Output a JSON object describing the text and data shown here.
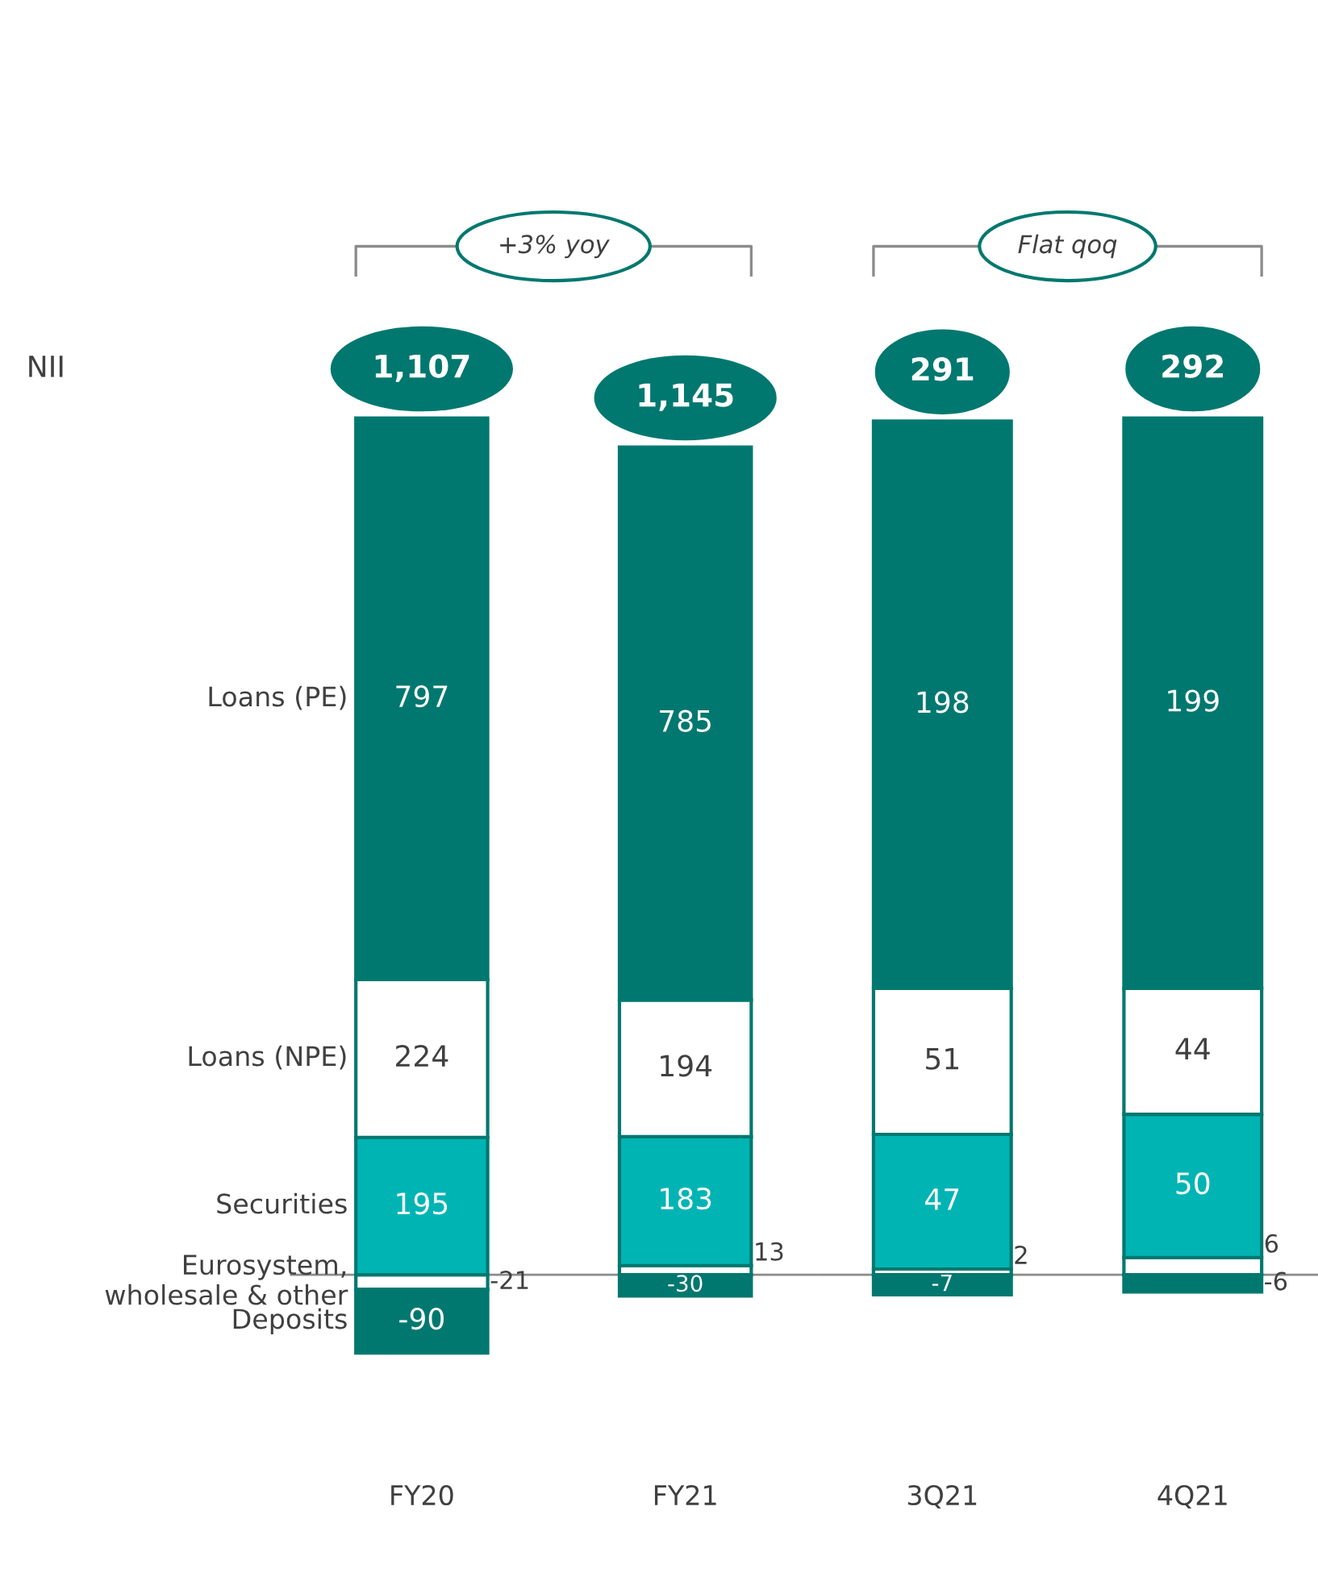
{
  "chart_data": [
    {
      "type": "bar",
      "stacked": true,
      "ylabel": "NII",
      "categories": [
        "FY20",
        "FY21"
      ],
      "tick_labels": "x",
      "data_labels": true,
      "legend": false,
      "grid": false,
      "series": [
        {
          "name": "Eurosystem,\nwholesale & other",
          "color": "#ffffff",
          "values": [
            -21,
            13
          ]
        },
        {
          "name": "Securities",
          "color": "#00b4b4",
          "values": [
            195,
            183
          ]
        },
        {
          "name": "Loans (NPE)",
          "color": "#ffffff",
          "values": [
            224,
            194
          ]
        },
        {
          "name": "Loans (PE)",
          "color": "#00786f",
          "values": [
            797,
            785
          ]
        },
        {
          "name": "Deposits",
          "color": "#00786f",
          "values": [
            -90,
            -30
          ]
        }
      ],
      "totals": [
        "1,107",
        "1,145"
      ],
      "annotations": [
        "+3% yoy"
      ],
      "ref_lines": [
        {
          "axis": "y",
          "value": 0,
          "color": "#8c8c8c"
        }
      ]
    },
    {
      "type": "bar",
      "stacked": true,
      "categories": [
        "3Q21",
        "4Q21"
      ],
      "tick_labels": "x",
      "data_labels": true,
      "legend": false,
      "grid": false,
      "series": [
        {
          "color": "#ffffff",
          "values": [
            2,
            6
          ]
        },
        {
          "color": "#00b4b4",
          "values": [
            47,
            50
          ]
        },
        {
          "color": "#ffffff",
          "values": [
            51,
            44
          ]
        },
        {
          "color": "#00786f",
          "values": [
            198,
            199
          ]
        },
        {
          "color": "#00786f",
          "values": [
            -7,
            -6
          ]
        }
      ],
      "totals": [
        "291",
        "292"
      ],
      "annotations": [
        "Flat qoq"
      ],
      "ref_lines": [
        {
          "axis": "y",
          "value": 0,
          "color": "#8c8c8c"
        }
      ]
    }
  ]
}
